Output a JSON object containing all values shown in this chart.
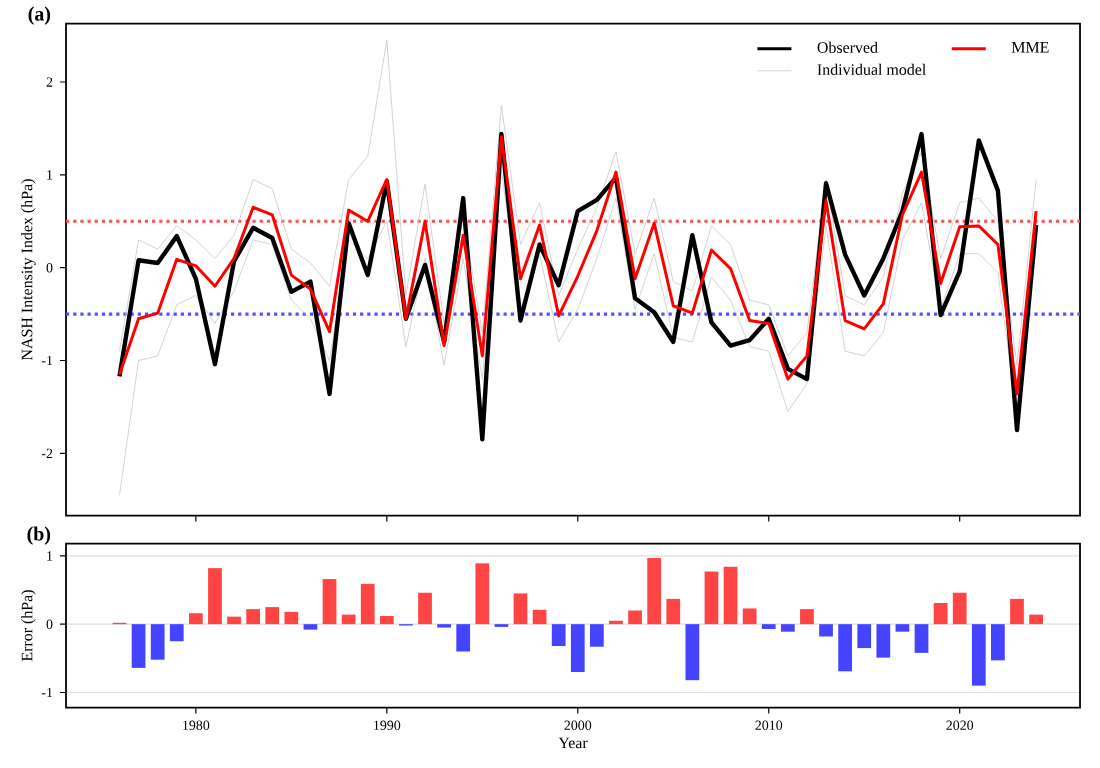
{
  "chart_data": [
    {
      "type": "line",
      "title": "(a)",
      "ylabel": "NASH Intensity Index (hPa)",
      "x": [
        1976,
        1977,
        1978,
        1979,
        1980,
        1981,
        1982,
        1983,
        1984,
        1985,
        1986,
        1987,
        1988,
        1989,
        1990,
        1991,
        1992,
        1993,
        1994,
        1995,
        1996,
        1997,
        1998,
        1999,
        2000,
        2001,
        2002,
        2003,
        2004,
        2005,
        2006,
        2007,
        2008,
        2009,
        2010,
        2011,
        2012,
        2013,
        2014,
        2015,
        2016,
        2017,
        2018,
        2019,
        2020,
        2021,
        2022,
        2023,
        2024
      ],
      "series": [
        {
          "name": "Observed",
          "color": "#000000",
          "values": [
            -1.17,
            0.08,
            0.05,
            0.34,
            -0.12,
            -1.04,
            0.07,
            0.43,
            0.32,
            -0.26,
            -0.15,
            -1.36,
            0.48,
            -0.08,
            0.93,
            -0.55,
            0.03,
            -0.8,
            0.75,
            -1.85,
            1.44,
            -0.57,
            0.25,
            -0.19,
            0.61,
            0.73,
            0.97,
            -0.33,
            -0.48,
            -0.8,
            0.35,
            -0.59,
            -0.84,
            -0.78,
            -0.55,
            -1.09,
            -1.2,
            0.91,
            0.14,
            -0.3,
            0.1,
            0.61,
            1.44,
            -0.51,
            -0.04,
            1.37,
            0.83,
            -1.75,
            0.46
          ]
        },
        {
          "name": "MME",
          "color": "#ff0000",
          "values": [
            -1.15,
            -0.55,
            -0.49,
            0.09,
            0.02,
            -0.2,
            0.1,
            0.65,
            0.57,
            -0.08,
            -0.23,
            -0.69,
            0.62,
            0.5,
            0.95,
            -0.55,
            0.5,
            -0.84,
            0.35,
            -0.95,
            1.41,
            -0.12,
            0.46,
            -0.52,
            -0.09,
            0.4,
            1.03,
            -0.12,
            0.48,
            -0.41,
            -0.49,
            0.19,
            -0.01,
            -0.57,
            -0.6,
            -1.2,
            -0.95,
            0.72,
            -0.57,
            -0.66,
            -0.39,
            0.57,
            1.03,
            -0.17,
            0.44,
            0.45,
            0.25,
            -1.36,
            0.61
          ]
        },
        {
          "name": "Individual model",
          "color": "#c8c8c8",
          "values": [
            -0.9,
            0.3,
            0.2,
            0.45,
            0.3,
            0.1,
            0.35,
            0.95,
            0.85,
            0.2,
            0.05,
            -0.2,
            0.95,
            1.2,
            2.45,
            -0.3,
            0.9,
            -0.6,
            0.55,
            -0.7,
            1.75,
            0.25,
            0.7,
            -0.3,
            0.2,
            0.65,
            1.25,
            0.15,
            0.75,
            -0.15,
            -0.25,
            0.45,
            0.25,
            -0.35,
            -0.4,
            -0.95,
            -0.7,
            0.95,
            -0.3,
            -0.4,
            -0.1,
            0.8,
            1.25,
            0.1,
            0.7,
            0.75,
            0.5,
            -1.05,
            0.95
          ]
        },
        {
          "color": "#c8c8c8",
          "values": [
            -2.45,
            -1.0,
            -0.95,
            -0.4,
            -0.3,
            -0.6,
            -0.25,
            0.3,
            0.25,
            -0.35,
            -0.55,
            -1.0,
            0.3,
            0.1,
            0.5,
            -0.85,
            0.1,
            -1.05,
            0.1,
            -1.2,
            1.05,
            -0.45,
            0.15,
            -0.8,
            -0.45,
            0.1,
            0.75,
            -0.45,
            0.15,
            -0.75,
            -0.8,
            -0.1,
            -0.35,
            -0.85,
            -0.9,
            -1.55,
            -1.25,
            0.45,
            -0.9,
            -0.95,
            -0.7,
            0.3,
            0.7,
            -0.45,
            0.15,
            0.15,
            -0.05,
            -1.6,
            0.25
          ]
        }
      ],
      "xlim": [
        1973.2,
        2026.3
      ],
      "xticks": [
        1980,
        1990,
        2000,
        2010,
        2020
      ],
      "ylim": [
        -2.67,
        2.63
      ],
      "yticks": [
        -2,
        -1,
        0,
        1,
        2
      ],
      "tick_labels": "y",
      "legend": "top right",
      "ref_lines": [
        {
          "axis": "y",
          "value": 0.5,
          "color": "#ff5050",
          "line_style": "dotted"
        },
        {
          "axis": "y",
          "value": -0.5,
          "color": "#5050ff",
          "line_style": "dotted"
        }
      ]
    },
    {
      "type": "bar",
      "title": "(b)",
      "xlabel": "Year",
      "ylabel": "Error (hPa)",
      "x": [
        1976,
        1977,
        1978,
        1979,
        1980,
        1981,
        1982,
        1983,
        1984,
        1985,
        1986,
        1987,
        1988,
        1989,
        1990,
        1991,
        1992,
        1993,
        1994,
        1995,
        1996,
        1997,
        1998,
        1999,
        2000,
        2001,
        2002,
        2003,
        2004,
        2005,
        2006,
        2007,
        2008,
        2009,
        2010,
        2011,
        2012,
        2013,
        2014,
        2015,
        2016,
        2017,
        2018,
        2019,
        2020,
        2021,
        2022,
        2023,
        2024
      ],
      "values": [
        0.02,
        -0.64,
        -0.52,
        -0.25,
        0.16,
        0.82,
        0.11,
        0.22,
        0.25,
        0.18,
        -0.08,
        0.66,
        0.14,
        0.59,
        0.12,
        -0.02,
        0.46,
        -0.05,
        -0.4,
        0.89,
        -0.04,
        0.45,
        0.21,
        -0.32,
        -0.7,
        -0.33,
        0.05,
        0.2,
        0.97,
        0.37,
        -0.82,
        0.77,
        0.84,
        0.23,
        -0.07,
        -0.11,
        0.22,
        -0.18,
        -0.69,
        -0.35,
        -0.49,
        -0.11,
        -0.42,
        0.31,
        0.46,
        -0.9,
        -0.53,
        0.37,
        0.14
      ],
      "colors": [
        "#ff4444",
        "#4444ff",
        "#4444ff",
        "#4444ff",
        "#ff4444",
        "#ff4444",
        "#ff4444",
        "#ff4444",
        "#ff4444",
        "#ff4444",
        "#4444ff",
        "#ff4444",
        "#ff4444",
        "#ff4444",
        "#ff4444",
        "#4444ff",
        "#ff4444",
        "#4444ff",
        "#4444ff",
        "#ff4444",
        "#4444ff",
        "#ff4444",
        "#ff4444",
        "#4444ff",
        "#4444ff",
        "#4444ff",
        "#ff4444",
        "#ff4444",
        "#ff4444",
        "#ff4444",
        "#4444ff",
        "#ff4444",
        "#ff4444",
        "#ff4444",
        "#4444ff",
        "#4444ff",
        "#ff4444",
        "#4444ff",
        "#4444ff",
        "#4444ff",
        "#4444ff",
        "#4444ff",
        "#4444ff",
        "#ff4444",
        "#ff4444",
        "#4444ff",
        "#4444ff",
        "#ff4444",
        "#ff4444"
      ],
      "xlim": [
        1973.2,
        2026.3
      ],
      "xticks": [
        1980,
        1990,
        2000,
        2010,
        2020
      ],
      "ylim": [
        -1.22,
        1.18
      ],
      "yticks": [
        -1,
        0,
        1
      ],
      "grid": "y"
    }
  ]
}
